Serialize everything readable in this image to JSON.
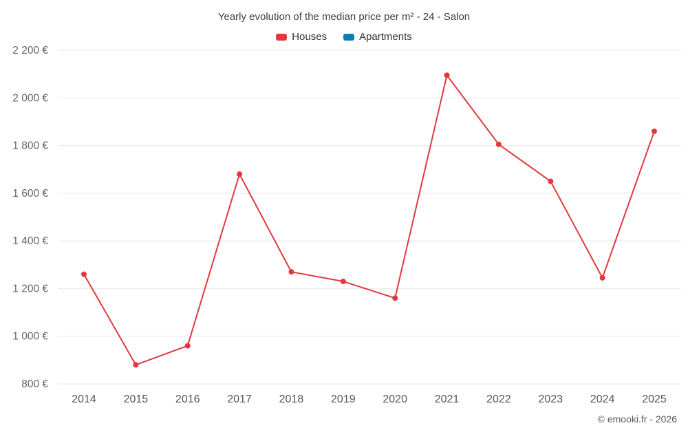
{
  "footer": "© emooki.fr - 2026",
  "chart_data": {
    "type": "line",
    "title": "Yearly evolution of the median price per m² - 24 - Salon",
    "x": [
      "2014",
      "2015",
      "2016",
      "2017",
      "2018",
      "2019",
      "2020",
      "2021",
      "2022",
      "2023",
      "2024",
      "2025"
    ],
    "series": [
      {
        "name": "Houses",
        "color": "#e0383e",
        "values": [
          1260,
          880,
          960,
          1680,
          1270,
          1230,
          1160,
          2095,
          1805,
          1650,
          1245,
          1860
        ]
      },
      {
        "name": "Apartments",
        "color": "#0e7dad",
        "values": []
      }
    ],
    "ylim": [
      800,
      2200
    ],
    "yticks": [
      {
        "value": 800,
        "label": "800 €"
      },
      {
        "value": 1000,
        "label": "1 000 €"
      },
      {
        "value": 1200,
        "label": "1 200 €"
      },
      {
        "value": 1400,
        "label": "1 400 €"
      },
      {
        "value": 1600,
        "label": "1 600 €"
      },
      {
        "value": 1800,
        "label": "1 800 €"
      },
      {
        "value": 2000,
        "label": "2 000 €"
      },
      {
        "value": 2200,
        "label": "2 200 €"
      }
    ],
    "grid": "horizontal",
    "legend_position": "top",
    "xlabel": "",
    "ylabel": ""
  }
}
